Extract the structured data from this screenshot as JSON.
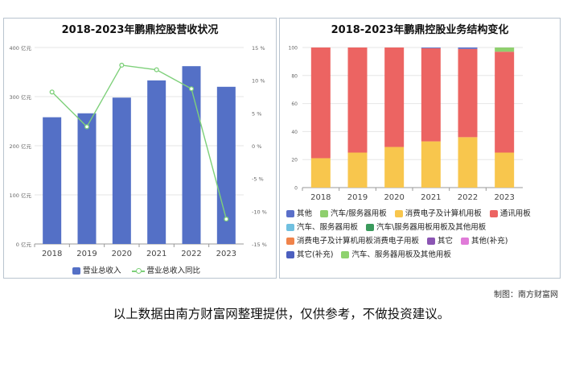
{
  "left_chart": {
    "title": "2018-2023年鹏鼎控股营收状况",
    "left_axis_ticks": [
      "0 亿元",
      "100 亿元",
      "200 亿元",
      "300 亿元",
      "400 亿元"
    ],
    "right_axis_ticks": [
      "-15 %",
      "-10 %",
      "-5 %",
      "0 %",
      "5 %",
      "10 %",
      "15 %"
    ],
    "legend": [
      "营业总收入",
      "营业总收入同比"
    ]
  },
  "right_chart": {
    "title": "2018-2023年鹏鼎控股业务结构变化",
    "y_ticks": [
      "0",
      "20",
      "40",
      "60",
      "80",
      "100"
    ],
    "legend_rows": [
      [
        "其他",
        "汽车/服务器用板",
        "消费电子及计算机用板",
        "通讯用板"
      ],
      [
        "汽车、服务器用板",
        "汽车\\服务器用板用板及其他用板"
      ],
      [
        "消费电子及计算机用板消费电子用板",
        "其它",
        "其他(补充)"
      ],
      [
        "其它(补充)",
        "汽车、服务器用板及其他用板"
      ]
    ],
    "legend_colors": [
      [
        "#5a6fc9",
        "#8fcf6e",
        "#f8c64d",
        "#ec6462"
      ],
      [
        "#70c0e0",
        "#3a9a5c"
      ],
      [
        "#f0834a",
        "#8b55b3",
        "#e07bd8"
      ],
      [
        "#4c5fbf",
        "#8ed26e"
      ]
    ]
  },
  "chart_data": [
    {
      "type": "bar",
      "title": "2018-2023年鹏鼎控股营收状况",
      "categories": [
        "2018",
        "2019",
        "2020",
        "2021",
        "2022",
        "2023"
      ],
      "series": [
        {
          "name": "营业总收入",
          "axis": "left",
          "unit": "亿元",
          "values": [
            258,
            266,
            298,
            333,
            362,
            320
          ]
        },
        {
          "name": "营业总收入同比",
          "type": "line",
          "axis": "right",
          "unit": "%",
          "values": [
            8.2,
            2.9,
            12.3,
            11.6,
            8.7,
            -11.2
          ]
        }
      ],
      "ylim_left": [
        0,
        400
      ],
      "ylim_right": [
        -15,
        15
      ],
      "colors": {
        "bar": "#5470c6",
        "line": "#7ed07a"
      }
    },
    {
      "type": "bar",
      "stacked": true,
      "title": "2018-2023年鹏鼎控股业务结构变化",
      "categories": [
        "2018",
        "2019",
        "2020",
        "2021",
        "2022",
        "2023"
      ],
      "ylim": [
        0,
        100
      ],
      "series": [
        {
          "name": "消费电子及计算机用板",
          "color": "#f8c64d",
          "values": [
            21,
            25,
            29,
            33,
            36,
            25
          ]
        },
        {
          "name": "通讯用板",
          "color": "#ec6462",
          "values": [
            79,
            75,
            71,
            66.5,
            63,
            72
          ]
        },
        {
          "name": "其他",
          "color": "#5a6fc9",
          "values": [
            0,
            0,
            0,
            0.5,
            1,
            0
          ]
        },
        {
          "name": "汽车/服务器用板",
          "color": "#8fcf6e",
          "values": [
            0,
            0,
            0,
            0,
            0,
            3
          ]
        }
      ]
    }
  ],
  "credit": "制图：南方财富网",
  "footnote": "以上数据由南方财富网整理提供，仅供参考，不做投资建议。",
  "watermark": "南方财富网",
  "watermark_url": "southmoney.com"
}
